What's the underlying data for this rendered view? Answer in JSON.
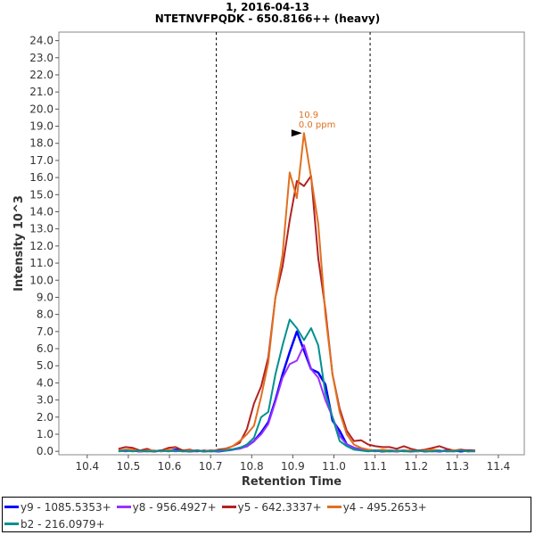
{
  "chart_data": {
    "type": "line",
    "title": "1, 2016-04-13",
    "subtitle": "NTETNVFPQDK - 650.8166++ (heavy)",
    "xlabel": "Retention Time",
    "ylabel": "Intensity 10^3",
    "xlim": [
      10.331,
      11.463
    ],
    "ylim": [
      -0.2,
      24.5
    ],
    "xticks": [
      "10.4",
      "10.5",
      "10.6",
      "10.7",
      "10.8",
      "10.9",
      "11.0",
      "11.1",
      "11.2",
      "11.3",
      "11.4"
    ],
    "yticks": [
      "0.0",
      "1.0",
      "2.0",
      "3.0",
      "4.0",
      "5.0",
      "6.0",
      "7.0",
      "8.0",
      "9.0",
      "10.0",
      "11.0",
      "12.0",
      "13.0",
      "14.0",
      "15.0",
      "16.0",
      "17.0",
      "18.0",
      "19.0",
      "20.0",
      "21.0",
      "22.0",
      "23.0",
      "24.0"
    ],
    "x_start": 10.476,
    "x_step": 0.01735,
    "boundaries": [
      10.714,
      11.088
    ],
    "annotation": {
      "x": 10.927,
      "y": 18.6,
      "lines": [
        "10.9",
        "0.0 ppm"
      ],
      "color": "#e07020"
    },
    "legend_placement": "bottom",
    "series": [
      {
        "name": "y9 - 1085.5353+",
        "color": "#0000ff",
        "width": 2.5,
        "values": [
          0.05,
          0.05,
          0.05,
          0.0,
          0.05,
          0.0,
          0.05,
          0.05,
          0.1,
          0.05,
          0.0,
          0.05,
          0.0,
          0.05,
          0.0,
          0.05,
          0.1,
          0.2,
          0.3,
          0.6,
          1.1,
          1.7,
          3.0,
          4.5,
          5.8,
          7.0,
          5.9,
          4.8,
          4.6,
          3.9,
          1.8,
          1.2,
          0.4,
          0.2,
          0.1,
          0.05,
          0.05,
          0.0,
          0.05,
          0.0,
          0.05,
          0.0,
          0.05,
          0.0,
          0.05,
          0.0,
          0.05,
          0.05,
          0.0,
          0.05,
          0.05
        ]
      },
      {
        "name": "y8 - 956.4927+",
        "color": "#9b30ff",
        "width": 2,
        "values": [
          0.05,
          0.0,
          0.05,
          0.0,
          0.0,
          0.05,
          0.0,
          0.05,
          0.0,
          0.05,
          0.0,
          0.0,
          0.05,
          0.0,
          0.0,
          0.05,
          0.1,
          0.15,
          0.3,
          0.6,
          1.0,
          1.6,
          2.9,
          4.3,
          5.1,
          5.3,
          6.2,
          4.8,
          4.3,
          3.0,
          2.0,
          0.9,
          0.4,
          0.2,
          0.1,
          0.05,
          0.0,
          0.05,
          0.0,
          0.0,
          0.05,
          0.0,
          0.0,
          0.05,
          0.0,
          0.0,
          0.05,
          0.0,
          0.05,
          0.0,
          0.05
        ]
      },
      {
        "name": "y5 - 642.3337+",
        "color": "#b22222",
        "width": 2,
        "values": [
          0.15,
          0.25,
          0.2,
          0.05,
          0.15,
          0.0,
          0.05,
          0.2,
          0.25,
          0.05,
          0.1,
          0.0,
          0.05,
          0.0,
          0.1,
          0.15,
          0.3,
          0.5,
          1.3,
          2.8,
          3.8,
          5.5,
          9.0,
          10.8,
          13.5,
          15.8,
          15.5,
          16.1,
          11.3,
          8.3,
          4.5,
          2.5,
          1.2,
          0.6,
          0.65,
          0.4,
          0.3,
          0.25,
          0.25,
          0.15,
          0.3,
          0.15,
          0.05,
          0.1,
          0.2,
          0.3,
          0.15,
          0.05,
          0.1,
          0.05,
          0.05
        ]
      },
      {
        "name": "y4 - 495.2653+",
        "color": "#e07020",
        "width": 2,
        "values": [
          0.05,
          0.1,
          0.1,
          0.0,
          0.05,
          0.05,
          0.0,
          0.1,
          0.05,
          0.0,
          0.05,
          0.05,
          0.0,
          0.05,
          0.05,
          0.1,
          0.3,
          0.6,
          1.0,
          1.5,
          3.2,
          5.2,
          9.0,
          11.5,
          16.3,
          14.8,
          18.6,
          16.0,
          13.3,
          8.0,
          4.5,
          2.3,
          1.0,
          0.4,
          0.2,
          0.1,
          0.05,
          0.1,
          0.05,
          0.0,
          0.05,
          0.05,
          0.0,
          0.05,
          0.1,
          0.05,
          0.0,
          0.05,
          0.05,
          0.0,
          0.05
        ]
      },
      {
        "name": "b2 - 216.0979+",
        "color": "#009090",
        "width": 2,
        "values": [
          0.0,
          0.05,
          0.0,
          0.05,
          0.0,
          0.0,
          0.05,
          0.0,
          0.05,
          0.0,
          0.0,
          0.05,
          0.0,
          0.0,
          0.05,
          0.05,
          0.1,
          0.2,
          0.4,
          0.8,
          2.0,
          2.3,
          4.5,
          6.2,
          7.7,
          7.2,
          6.5,
          7.2,
          6.2,
          3.4,
          2.0,
          0.6,
          0.3,
          0.1,
          0.05,
          0.0,
          0.05,
          0.0,
          0.0,
          0.05,
          0.0,
          0.0,
          0.05,
          0.0,
          0.0,
          0.05,
          0.0,
          0.0,
          0.05,
          0.0,
          0.0
        ]
      }
    ]
  }
}
